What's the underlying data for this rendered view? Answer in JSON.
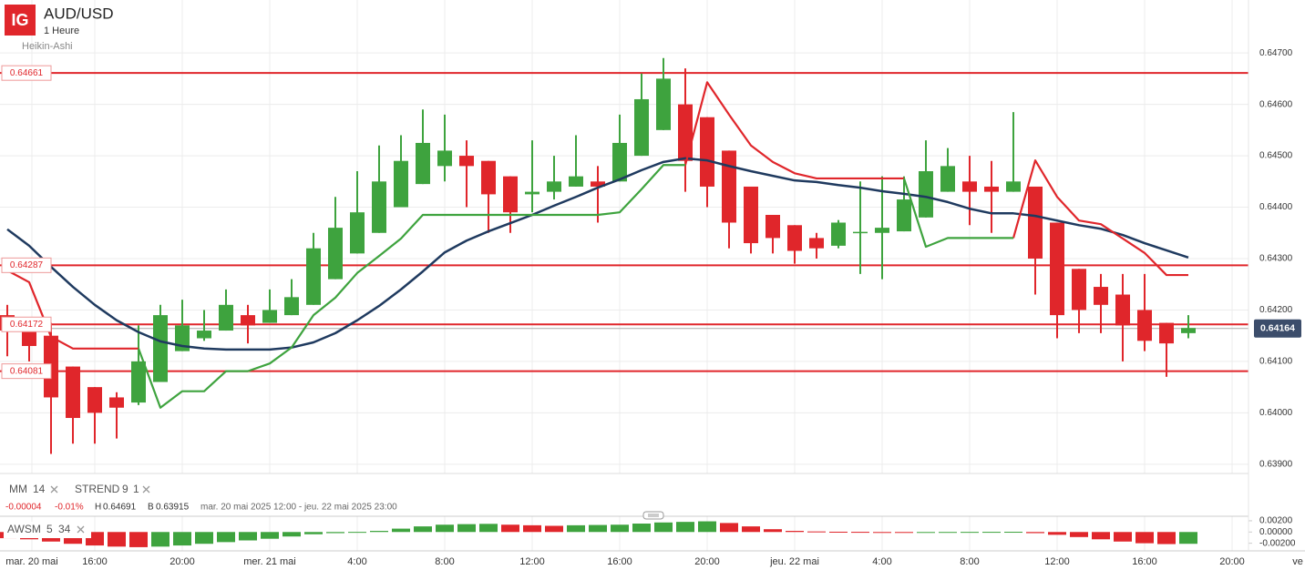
{
  "header": {
    "logo": "IG",
    "symbol": "AUD/USD",
    "interval": "1 Heure",
    "style": "Heikin-Ashi"
  },
  "legend": [
    {
      "name": "MM",
      "params": [
        14
      ]
    },
    {
      "name": "STREND",
      "params": [
        9,
        1
      ]
    }
  ],
  "stats": {
    "change": -4e-05,
    "change_pct": "-0.01%",
    "high": {
      "label": "H",
      "value": 0.64691
    },
    "low": {
      "label": "B",
      "value": 0.63915
    },
    "range": "mar. 20 mai 2025 12:00 - jeu. 22 mai 2025 23:00"
  },
  "chart_data": {
    "type": "candlestick",
    "up_color": "#3ea33e",
    "down_color": "#e0262b",
    "x": [
      0,
      1,
      2,
      3,
      4,
      5,
      6,
      7,
      8,
      9,
      10,
      11,
      12,
      13,
      14,
      15,
      16,
      17,
      18,
      19,
      20,
      21,
      22,
      23,
      24,
      25,
      26,
      27,
      28,
      29,
      30,
      31,
      32,
      33,
      34,
      35,
      36,
      37,
      38,
      39,
      40,
      41,
      42,
      43,
      44,
      45,
      46,
      47,
      48,
      49,
      50,
      51,
      52,
      53,
      54
    ],
    "open": [
      0.6419,
      0.64175,
      0.6415,
      0.6409,
      0.6405,
      0.6403,
      0.6402,
      0.6406,
      0.6412,
      0.64145,
      0.6416,
      0.6419,
      0.64175,
      0.6419,
      0.6421,
      0.6426,
      0.6431,
      0.6435,
      0.644,
      0.64445,
      0.6448,
      0.645,
      0.6449,
      0.6446,
      0.64425,
      0.6443,
      0.6444,
      0.6445,
      0.6445,
      0.645,
      0.6455,
      0.646,
      0.64575,
      0.6451,
      0.6444,
      0.64385,
      0.64365,
      0.6434,
      0.64325,
      0.6435,
      0.6435,
      0.64353,
      0.6438,
      0.6443,
      0.6445,
      0.6444,
      0.6443,
      0.6444,
      0.6437,
      0.6428,
      0.64245,
      0.6423,
      0.642,
      0.64175,
      0.64155
    ],
    "high": [
      0.6421,
      0.6418,
      0.64175,
      0.6409,
      0.6405,
      0.6404,
      0.6417,
      0.6421,
      0.6422,
      0.642,
      0.6424,
      0.6421,
      0.6424,
      0.6426,
      0.6435,
      0.6442,
      0.6447,
      0.6452,
      0.6454,
      0.6459,
      0.6458,
      0.6453,
      0.6449,
      0.6446,
      0.6453,
      0.645,
      0.6454,
      0.6448,
      0.6458,
      0.6466,
      0.6469,
      0.6467,
      0.64575,
      0.6451,
      0.6444,
      0.64385,
      0.64365,
      0.6435,
      0.64375,
      0.6445,
      0.6446,
      0.6446,
      0.6453,
      0.64515,
      0.645,
      0.6449,
      0.64585,
      0.6444,
      0.6437,
      0.6428,
      0.6427,
      0.6427,
      0.6427,
      0.64175,
      0.6419
    ],
    "low": [
      0.6411,
      0.641,
      0.6392,
      0.6394,
      0.6394,
      0.6395,
      0.64015,
      0.6406,
      0.6412,
      0.6414,
      0.6416,
      0.64135,
      0.64175,
      0.6419,
      0.6421,
      0.6426,
      0.6431,
      0.6435,
      0.644,
      0.64445,
      0.6445,
      0.644,
      0.6435,
      0.6435,
      0.6439,
      0.64415,
      0.6444,
      0.6437,
      0.6445,
      0.645,
      0.6455,
      0.6443,
      0.644,
      0.6432,
      0.6431,
      0.6431,
      0.6429,
      0.643,
      0.6432,
      0.6427,
      0.6426,
      0.64353,
      0.6438,
      0.6443,
      0.64365,
      0.6435,
      0.6443,
      0.6423,
      0.64145,
      0.64155,
      0.64155,
      0.641,
      0.6412,
      0.6407,
      0.64145
    ],
    "close": [
      0.6416,
      0.6413,
      0.6403,
      0.6399,
      0.64,
      0.6401,
      0.641,
      0.6419,
      0.6417,
      0.6416,
      0.6421,
      0.6417,
      0.642,
      0.64225,
      0.6432,
      0.6436,
      0.6439,
      0.6445,
      0.6449,
      0.64525,
      0.6451,
      0.6448,
      0.64425,
      0.6439,
      0.6443,
      0.6445,
      0.6446,
      0.6444,
      0.64525,
      0.6461,
      0.6465,
      0.6449,
      0.6444,
      0.6437,
      0.6433,
      0.6434,
      0.64315,
      0.6432,
      0.6437,
      0.64352,
      0.6436,
      0.64415,
      0.6447,
      0.6448,
      0.6443,
      0.6443,
      0.6445,
      0.643,
      0.6419,
      0.642,
      0.6421,
      0.6417,
      0.6414,
      0.64135,
      0.64165
    ],
    "series": [
      {
        "name": "MM",
        "color": "#1f3a5f",
        "values": [
          0.64357,
          0.64325,
          0.64284,
          0.64245,
          0.6421,
          0.6418,
          0.64157,
          0.64139,
          0.6413,
          0.64125,
          0.64123,
          0.64123,
          0.64123,
          0.64127,
          0.64137,
          0.64155,
          0.6418,
          0.64208,
          0.6424,
          0.64275,
          0.64312,
          0.64335,
          0.64353,
          0.64369,
          0.64385,
          0.64403,
          0.6442,
          0.64438,
          0.64454,
          0.64472,
          0.64488,
          0.64495,
          0.64491,
          0.6448,
          0.6447,
          0.64461,
          0.64452,
          0.64449,
          0.64443,
          0.64438,
          0.64431,
          0.64426,
          0.6442,
          0.6441,
          0.64397,
          0.64388,
          0.64388,
          0.64383,
          0.64374,
          0.64365,
          0.64358,
          0.64346,
          0.6433,
          0.64316,
          0.64302
        ]
      },
      {
        "name": "STREND",
        "color": "#e0262b",
        "values": [
          0.64277,
          0.64254,
          0.64148,
          0.64125,
          0.64125,
          0.64125,
          0.64125,
          null,
          null,
          null,
          null,
          null,
          null,
          null,
          null,
          null,
          null,
          null,
          null,
          null,
          null,
          null,
          null,
          null,
          null,
          null,
          null,
          null,
          null,
          null,
          null,
          0.64482,
          0.64643,
          0.6458,
          0.6452,
          0.64488,
          0.64466,
          0.64456,
          0.64456,
          0.64456,
          0.64456,
          0.64456,
          null,
          null,
          null,
          null,
          0.6434,
          0.64491,
          0.6442,
          0.64374,
          0.64367,
          0.64339,
          0.64311,
          0.64268,
          0.64268
        ],
        "up_color": "#3ea33e",
        "up_values": [
          null,
          null,
          null,
          null,
          null,
          null,
          0.64125,
          0.6401,
          0.64042,
          0.64042,
          0.64081,
          0.64081,
          0.64096,
          0.64127,
          0.6419,
          0.64224,
          0.64272,
          0.64305,
          0.64339,
          0.64385,
          0.64385,
          0.64385,
          0.64385,
          0.64385,
          0.64385,
          0.64385,
          0.64385,
          0.64385,
          0.6439,
          0.64435,
          0.64482,
          0.64482,
          null,
          null,
          null,
          null,
          null,
          null,
          null,
          null,
          null,
          0.64456,
          0.64323,
          0.6434,
          0.6434,
          0.6434,
          0.6434,
          null,
          null,
          null,
          null,
          null,
          null,
          null,
          null
        ]
      }
    ],
    "levels": [
      0.64661,
      0.64287,
      0.64172,
      0.64081
    ],
    "level_color": "#e0262b",
    "current_price": 0.64164,
    "xlim": [
      -0.3333,
      56.75
    ],
    "xticks": [
      {
        "value": 1.125,
        "label": "mar. 20 mai"
      },
      {
        "value": 4,
        "label": "16:00"
      },
      {
        "value": 8,
        "label": "20:00"
      },
      {
        "value": 12,
        "label": "mer. 21 mai"
      },
      {
        "value": 16,
        "label": "4:00"
      },
      {
        "value": 20,
        "label": "8:00"
      },
      {
        "value": 24,
        "label": "12:00"
      },
      {
        "value": 28,
        "label": "16:00"
      },
      {
        "value": 32,
        "label": "20:00"
      },
      {
        "value": 36,
        "label": "jeu. 22 mai"
      },
      {
        "value": 40,
        "label": "4:00"
      },
      {
        "value": 44,
        "label": "8:00"
      },
      {
        "value": 48,
        "label": "12:00"
      },
      {
        "value": 52,
        "label": "16:00"
      },
      {
        "value": 56,
        "label": "20:00"
      },
      {
        "value": 59,
        "label": "ve"
      }
    ],
    "ylim": [
      0.63882,
      0.64803
    ],
    "yticks": [
      {
        "value": 0.647,
        "label": "0.64700"
      },
      {
        "value": 0.646,
        "label": "0.64600"
      },
      {
        "value": 0.645,
        "label": "0.64500"
      },
      {
        "value": 0.644,
        "label": "0.64400"
      },
      {
        "value": 0.643,
        "label": "0.64300"
      },
      {
        "value": 0.642,
        "label": "0.64200"
      },
      {
        "value": 0.641,
        "label": "0.64100"
      },
      {
        "value": 0.64,
        "label": "0.64000"
      },
      {
        "value": 0.639,
        "label": "0.63900"
      }
    ],
    "grid": true,
    "oscillator": {
      "name": "AWSM",
      "params": [
        5,
        34
      ],
      "values": [
        -0.0011,
        -0.0013,
        -0.0017,
        -0.0021,
        -0.0024,
        -0.0026,
        -0.0027,
        -0.0026,
        -0.0024,
        -0.0021,
        -0.0018,
        -0.0015,
        -0.0012,
        -0.0008,
        -0.0004,
        -0.0002,
        2e-05,
        0.0002,
        0.0006,
        0.001,
        0.0013,
        0.0014,
        0.00145,
        0.0013,
        0.0012,
        0.0011,
        0.0012,
        0.00125,
        0.0013,
        0.0015,
        0.0017,
        0.0018,
        0.0019,
        0.0016,
        0.001,
        0.0005,
        0.0002,
        0.0001,
        5e-05,
        3e-05,
        -2e-05,
        -4e-05,
        -2e-05,
        1e-05,
        2e-05,
        3e-05,
        4e-05,
        -0.0002,
        -0.0005,
        -0.0009,
        -0.0013,
        -0.0017,
        -0.002,
        -0.00215,
        -0.0021
      ],
      "ylim": [
        -0.00336,
        0.0028
      ],
      "yticks": [
        {
          "value": 0.002,
          "label": "0.00200"
        },
        {
          "value": 0,
          "label": "0.00000"
        },
        {
          "value": -0.002,
          "label": "-0.00200"
        }
      ]
    }
  }
}
